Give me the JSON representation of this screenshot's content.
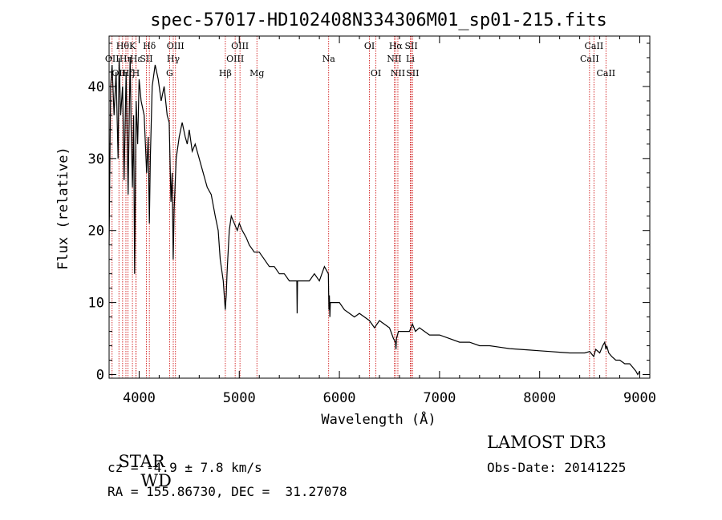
{
  "chart_data": {
    "type": "line",
    "title": "spec-57017-HD102408N334306M01_sp01-215.fits",
    "xlabel": "Wavelength (Å)",
    "ylabel": "Flux (relative)",
    "xlim": [
      3700,
      9100
    ],
    "ylim": [
      -0.5,
      47
    ],
    "xticks": [
      4000,
      5000,
      6000,
      7000,
      8000,
      9000
    ],
    "yticks": [
      0,
      10,
      20,
      30,
      40
    ],
    "grid": false,
    "series": [
      {
        "name": "spectrum",
        "x": [
          3700,
          3715,
          3730,
          3750,
          3770,
          3790,
          3800,
          3815,
          3835,
          3850,
          3870,
          3890,
          3910,
          3920,
          3933,
          3945,
          3955,
          3970,
          3985,
          4000,
          4020,
          4050,
          4075,
          4090,
          4102,
          4112,
          4130,
          4160,
          4190,
          4220,
          4250,
          4280,
          4300,
          4318,
          4330,
          4340,
          4350,
          4370,
          4400,
          4430,
          4460,
          4480,
          4500,
          4530,
          4560,
          4600,
          4640,
          4680,
          4720,
          4760,
          4790,
          4810,
          4840,
          4860,
          4870,
          4878,
          4885,
          4900,
          4920,
          4950,
          4980,
          5000,
          5030,
          5070,
          5100,
          5150,
          5200,
          5250,
          5300,
          5350,
          5400,
          5450,
          5500,
          5550,
          5575,
          5578,
          5582,
          5600,
          5650,
          5700,
          5750,
          5800,
          5850,
          5890,
          5895,
          5900,
          5905,
          5910,
          5950,
          6000,
          6050,
          6100,
          6150,
          6200,
          6250,
          6300,
          6350,
          6400,
          6450,
          6500,
          6540,
          6560,
          6565,
          6570,
          6590,
          6620,
          6660,
          6700,
          6730,
          6760,
          6800,
          6900,
          7000,
          7100,
          7200,
          7300,
          7400,
          7500,
          7600,
          7700,
          7800,
          7900,
          8000,
          8100,
          8200,
          8300,
          8400,
          8450,
          8500,
          8540,
          8560,
          8600,
          8630,
          8650,
          8662,
          8670,
          8690,
          8720,
          8760,
          8800,
          8850,
          8900,
          8930,
          8960,
          8980,
          9000
        ],
        "y": [
          18,
          40,
          43,
          36,
          42,
          30,
          44,
          36,
          40,
          27,
          42,
          25,
          44,
          34,
          26,
          36,
          14,
          38,
          32,
          41,
          38,
          36,
          28,
          33,
          21,
          30,
          40,
          43,
          41,
          38,
          40,
          36,
          35,
          24,
          28,
          16,
          23,
          30,
          33,
          35,
          33,
          32,
          34,
          31,
          32,
          30,
          28,
          26,
          25,
          22,
          20,
          16,
          13,
          9,
          11,
          14,
          16,
          20,
          22,
          21,
          20,
          21,
          20,
          19,
          18,
          17,
          17,
          16,
          15,
          15,
          14,
          14,
          13,
          13,
          13,
          8.5,
          13,
          13,
          13,
          13,
          14,
          13,
          15,
          14,
          9,
          11,
          8,
          10,
          10,
          10,
          9,
          8.5,
          8,
          8.5,
          8,
          7.5,
          6.5,
          7.5,
          7,
          6.5,
          5,
          4.5,
          3.5,
          5,
          6,
          6,
          6,
          6,
          7,
          6,
          6.5,
          5.5,
          5.5,
          5,
          4.5,
          4.5,
          4,
          4,
          3.8,
          3.6,
          3.5,
          3.4,
          3.3,
          3.2,
          3.1,
          3,
          3,
          3,
          3.2,
          2.5,
          3.5,
          3,
          4,
          4.5,
          3.5,
          4,
          3,
          2.5,
          2,
          2,
          1.5,
          1.5,
          1,
          0.5,
          0,
          0.5
        ]
      }
    ],
    "lines": [
      {
        "wavelength": 3730,
        "label": "OII",
        "row": 2
      },
      {
        "wavelength": 3798,
        "label": "OII",
        "row": 3
      },
      {
        "wavelength": 3835,
        "label": "Hθ",
        "row": 1
      },
      {
        "wavelength": 3868,
        "label": "Hη",
        "row": 2
      },
      {
        "wavelength": 3889,
        "label": "Hζ",
        "row": 3
      },
      {
        "wavelength": 3933,
        "label": "K",
        "row": 1
      },
      {
        "wavelength": 3968,
        "label": "Hε",
        "row": 2
      },
      {
        "wavelength": 3968,
        "label": "H",
        "row": 3
      },
      {
        "wavelength": 4072,
        "label": "SII",
        "row": 2
      },
      {
        "wavelength": 4102,
        "label": "Hδ",
        "row": 1
      },
      {
        "wavelength": 4304,
        "label": "G",
        "row": 3
      },
      {
        "wavelength": 4341,
        "label": "Hγ",
        "row": 2
      },
      {
        "wavelength": 4363,
        "label": "OIII",
        "row": 1
      },
      {
        "wavelength": 4861,
        "label": "Hβ",
        "row": 3
      },
      {
        "wavelength": 4959,
        "label": "OIII",
        "row": 2
      },
      {
        "wavelength": 5007,
        "label": "OIII",
        "row": 1
      },
      {
        "wavelength": 5176,
        "label": "Mg",
        "row": 3
      },
      {
        "wavelength": 5893,
        "label": "Na",
        "row": 2
      },
      {
        "wavelength": 6300,
        "label": "OI",
        "row": 1
      },
      {
        "wavelength": 6364,
        "label": "OI",
        "row": 3
      },
      {
        "wavelength": 6548,
        "label": "NII",
        "row": 2
      },
      {
        "wavelength": 6563,
        "label": "Hα",
        "row": 1
      },
      {
        "wavelength": 6584,
        "label": "NII",
        "row": 3
      },
      {
        "wavelength": 6708,
        "label": "Li",
        "row": 2
      },
      {
        "wavelength": 6717,
        "label": "SII",
        "row": 1
      },
      {
        "wavelength": 6731,
        "label": "SII",
        "row": 3
      },
      {
        "wavelength": 8498,
        "label": "CaII",
        "row": 2
      },
      {
        "wavelength": 8542,
        "label": "CaII",
        "row": 1
      },
      {
        "wavelength": 8662,
        "label": "CaII",
        "row": 3
      }
    ]
  },
  "info": {
    "class_label": "STAR",
    "subclass_label": "WD",
    "survey": "LAMOST DR3",
    "cz": "cz = -4.9 ± 7.8 km/s",
    "obs_date": "Obs-Date: 20141225",
    "coords": "RA = 155.86730, DEC =  31.27078"
  },
  "colors": {
    "spectrum": "#000000",
    "line_marker": "#cc0000",
    "background": "#ffffff"
  }
}
